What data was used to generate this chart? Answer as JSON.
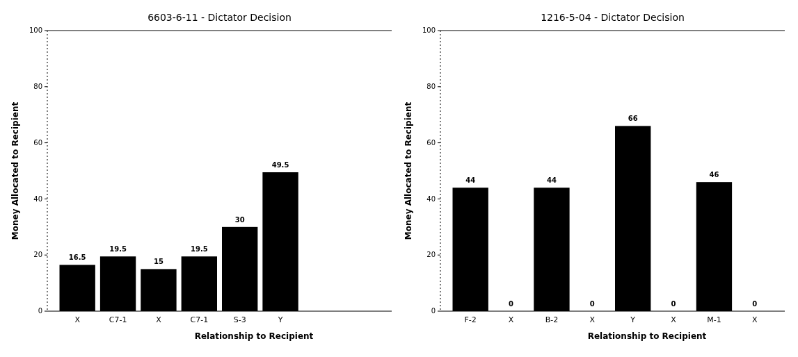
{
  "chart_data": [
    {
      "type": "bar",
      "title": "6603-6-11 - Dictator Decision",
      "xlabel": "Relationship to Recipient",
      "ylabel": "Money Allocated to Recipient",
      "categories": [
        "X",
        "C7-1",
        "X",
        "C7-1",
        "S-3",
        "Y",
        null,
        null
      ],
      "values": [
        16.5,
        19.5,
        15,
        19.5,
        30,
        49.5,
        null,
        null
      ],
      "color": "#000000",
      "ylim": [
        0,
        100
      ],
      "yticks": [
        0,
        20,
        40,
        60,
        80,
        100
      ],
      "data_labels": true
    },
    {
      "type": "bar",
      "title": "1216-5-04 - Dictator Decision",
      "xlabel": "Relationship to Recipient",
      "ylabel": "Money Allocated to Recipient",
      "categories": [
        "F-2",
        "X",
        "B-2",
        "X",
        "Y",
        "X",
        "M-1",
        "X"
      ],
      "values": [
        44,
        0,
        44,
        0,
        66,
        0,
        46,
        0
      ],
      "color": "#000000",
      "ylim": [
        0,
        100
      ],
      "yticks": [
        0,
        20,
        40,
        60,
        80,
        100
      ],
      "data_labels": true
    }
  ]
}
